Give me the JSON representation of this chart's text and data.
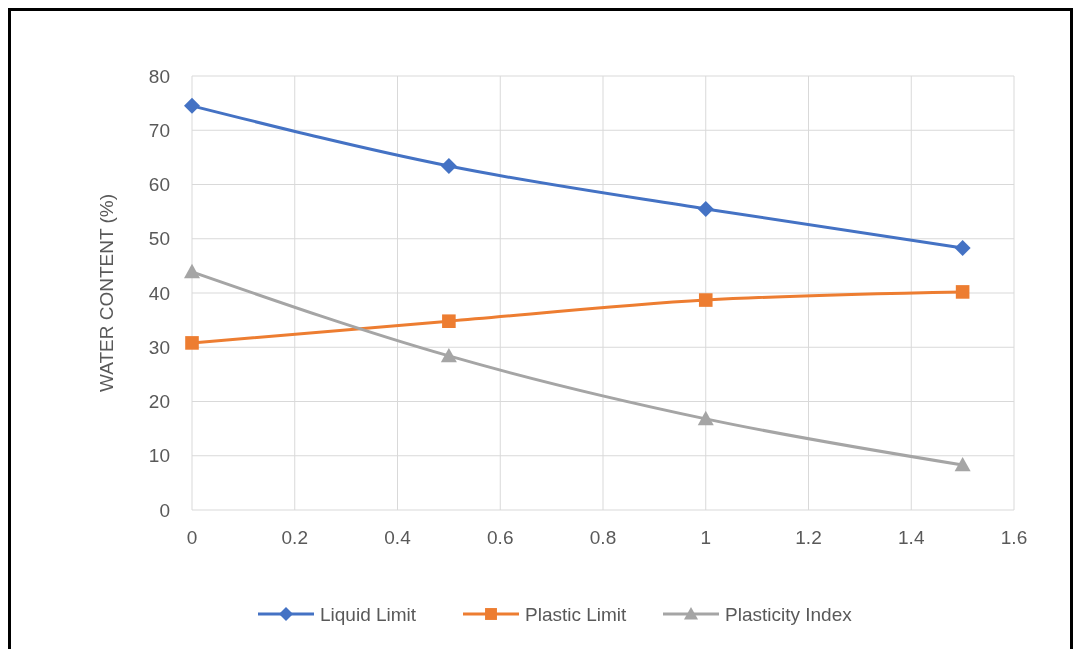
{
  "chart_data": {
    "type": "line",
    "ylabel": "WATER CONTENT (%)",
    "x": [
      0,
      0.5,
      1,
      1.5
    ],
    "series": [
      {
        "name": "Liquid Limit",
        "color": "#4472c4",
        "values": [
          74.5,
          63.4,
          55.5,
          48.3
        ],
        "marker": "diamond"
      },
      {
        "name": "Plastic Limit",
        "color": "#ed7d31",
        "values": [
          30.8,
          34.8,
          38.7,
          40.2
        ],
        "marker": "square"
      },
      {
        "name": "Plasticity Index",
        "color": "#a5a5a5",
        "values": [
          43.9,
          28.4,
          16.8,
          8.3
        ],
        "marker": "triangle"
      }
    ],
    "xlim": [
      0,
      1.6
    ],
    "xticks": [
      0,
      0.2,
      0.4,
      0.6,
      0.8,
      1,
      1.2,
      1.4,
      1.6
    ],
    "ylim": [
      0,
      80
    ],
    "yticks": [
      0,
      10,
      20,
      30,
      40,
      50,
      60,
      70,
      80
    ],
    "grid": true,
    "legend": "bottom",
    "line_style": "solid"
  }
}
